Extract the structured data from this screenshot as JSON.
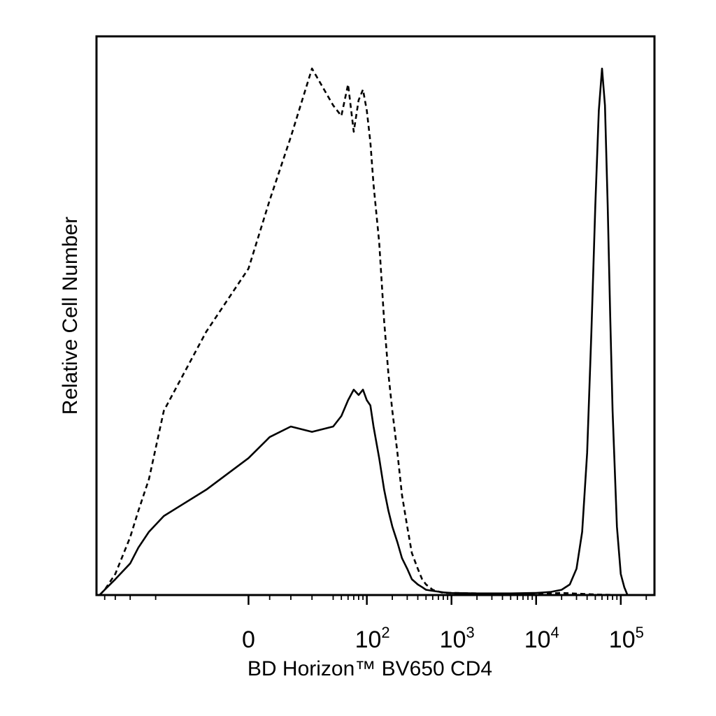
{
  "chart_data": {
    "type": "line",
    "title": "",
    "xlabel": "BD Horizon™ BV650 CD4",
    "ylabel": "Relative Cell Number",
    "x_scale": "biexponential",
    "xlim": [
      -250,
      250000
    ],
    "ylim": [
      0,
      1
    ],
    "grid": false,
    "legend": "none",
    "x_tick_labels": [
      {
        "value": 0,
        "base": "0",
        "exp": ""
      },
      {
        "value": 100,
        "base": "10",
        "exp": "2"
      },
      {
        "value": 1000,
        "base": "10",
        "exp": "3"
      },
      {
        "value": 10000,
        "base": "10",
        "exp": "4"
      },
      {
        "value": 100000,
        "base": "10",
        "exp": "5"
      }
    ],
    "series": [
      {
        "style": "dashed",
        "x": [
          -230,
          -200,
          -150,
          -100,
          -80,
          -60,
          -40,
          -20,
          0,
          10,
          20,
          30,
          40,
          50,
          60,
          70,
          80,
          90,
          100,
          110,
          120,
          140,
          160,
          180,
          200,
          230,
          260,
          300,
          340,
          400,
          450,
          500,
          600,
          800,
          1000,
          2000,
          5000,
          10000,
          20000,
          50000,
          100000,
          200000
        ],
        "y": [
          0.0,
          0.01,
          0.04,
          0.11,
          0.16,
          0.22,
          0.35,
          0.5,
          0.62,
          0.75,
          0.87,
          1.0,
          0.93,
          0.91,
          0.97,
          0.88,
          0.94,
          0.96,
          0.92,
          0.86,
          0.78,
          0.67,
          0.52,
          0.42,
          0.35,
          0.27,
          0.19,
          0.13,
          0.08,
          0.05,
          0.03,
          0.02,
          0.01,
          0.004,
          0.004,
          0.003,
          0.002,
          0.002,
          0.004,
          0.001,
          0.0,
          0.0
        ]
      },
      {
        "style": "solid",
        "x": [
          -230,
          -200,
          -150,
          -100,
          -80,
          -60,
          -40,
          -20,
          0,
          10,
          20,
          30,
          40,
          50,
          60,
          70,
          80,
          90,
          100,
          110,
          120,
          140,
          160,
          180,
          200,
          230,
          260,
          300,
          340,
          400,
          450,
          500,
          600,
          800,
          1000,
          2000,
          5000,
          10000,
          15000,
          20000,
          25000,
          30000,
          35000,
          40000,
          45000,
          50000,
          55000,
          60000,
          65000,
          70000,
          75000,
          80000,
          90000,
          100000,
          110000,
          120000,
          150000,
          200000
        ],
        "y": [
          0.0,
          0.01,
          0.03,
          0.06,
          0.09,
          0.12,
          0.15,
          0.2,
          0.26,
          0.3,
          0.32,
          0.31,
          0.32,
          0.34,
          0.37,
          0.39,
          0.38,
          0.39,
          0.37,
          0.36,
          0.32,
          0.26,
          0.2,
          0.16,
          0.13,
          0.1,
          0.07,
          0.05,
          0.03,
          0.02,
          0.015,
          0.01,
          0.008,
          0.005,
          0.004,
          0.003,
          0.003,
          0.004,
          0.006,
          0.01,
          0.02,
          0.05,
          0.12,
          0.27,
          0.5,
          0.74,
          0.92,
          1.0,
          0.93,
          0.74,
          0.53,
          0.35,
          0.13,
          0.04,
          0.015,
          0.0,
          0.0,
          0.0
        ]
      }
    ]
  }
}
